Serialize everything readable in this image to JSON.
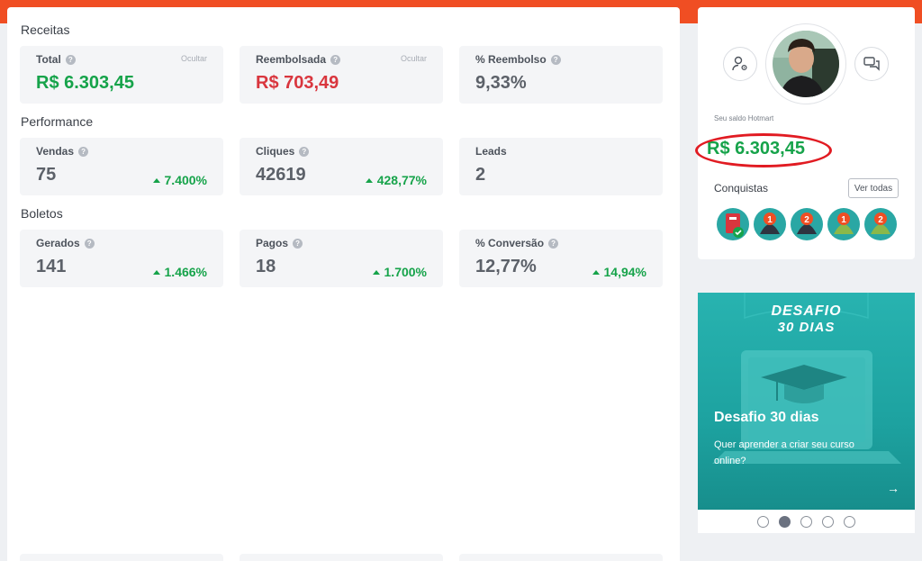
{
  "colors": {
    "brand": "#f04e23",
    "positive": "#16a34a",
    "negative": "#d9363e",
    "highlight": "#e11b22"
  },
  "sections": {
    "receitas": "Receitas",
    "performance": "Performance",
    "boletos": "Boletos"
  },
  "receitas": {
    "total": {
      "label": "Total",
      "value": "R$ 6.303,45",
      "hide": "Ocultar"
    },
    "reembolsada": {
      "label": "Reembolsada",
      "value": "R$ 703,49",
      "hide": "Ocultar"
    },
    "pct_reembolso": {
      "label": "% Reembolso",
      "value": "9,33%"
    }
  },
  "performance": {
    "vendas": {
      "label": "Vendas",
      "value": "75",
      "trend": "7.400%"
    },
    "cliques": {
      "label": "Cliques",
      "value": "42619",
      "trend": "428,77%"
    },
    "leads": {
      "label": "Leads",
      "value": "2"
    }
  },
  "boletos": {
    "gerados": {
      "label": "Gerados",
      "value": "141",
      "trend": "1.466%"
    },
    "pagos": {
      "label": "Pagos",
      "value": "18",
      "trend": "1.700%"
    },
    "conversao": {
      "label": "% Conversão",
      "value": "12,77%",
      "trend": "14,94%"
    }
  },
  "profile": {
    "saldo_label": "Seu saldo Hotmart",
    "saldo_value": "R$ 6.303,45",
    "conquistas_label": "Conquistas",
    "ver_todas": "Ver todas",
    "icons": {
      "left": "user-settings-icon",
      "right": "chat-icon"
    },
    "badges": [
      {
        "icon": "badge-verified-icon",
        "number": ""
      },
      {
        "icon": "badge-icon",
        "number": "1"
      },
      {
        "icon": "badge-icon",
        "number": "2"
      },
      {
        "icon": "badge-icon",
        "number": "1"
      },
      {
        "icon": "badge-icon",
        "number": "2"
      }
    ]
  },
  "promo": {
    "banner_top": "DESAFIO",
    "banner_bottom": "30 DIAS",
    "heading": "Desafio 30 dias",
    "text": "Quer aprender a criar seu curso online?",
    "arrow": "→",
    "slides": 5,
    "active_slide": 2
  }
}
